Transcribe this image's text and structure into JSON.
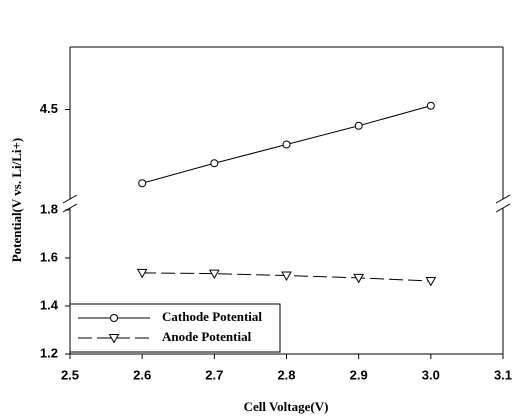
{
  "chart_data": {
    "type": "line",
    "x_label": "Cell Voltage(V)",
    "y_label": "Potential(V vs. Li/Li+)",
    "x": [
      2.6,
      2.7,
      2.8,
      2.9,
      3
    ],
    "xlim": [
      2.5,
      3.1
    ],
    "xticks": [
      2.5,
      2.6,
      2.7,
      2.8,
      2.9,
      {
        "value": 3,
        "label": "3.0"
      },
      3.1
    ],
    "ylim": [
      1.2,
      1.8
    ],
    "yticks": [
      1.2,
      1.4,
      1.6,
      1.8
    ],
    "y2lim": [
      3.8,
      5.0
    ],
    "y2ticks": [
      4.5
    ],
    "broken_axis": true,
    "legend": "lower left",
    "series": [
      {
        "name": "Cathode Potential",
        "color": "#000000",
        "marker": "circle",
        "dash": "solid",
        "axis": "y2",
        "values": [
          3.91,
          4.07,
          4.22,
          4.37,
          4.53
        ]
      },
      {
        "name": "Anode Potential",
        "color": "#000000",
        "marker": "triangle-down",
        "dash": "dashed",
        "values": [
          1.538,
          1.535,
          1.527,
          1.517,
          1.504
        ]
      }
    ]
  }
}
